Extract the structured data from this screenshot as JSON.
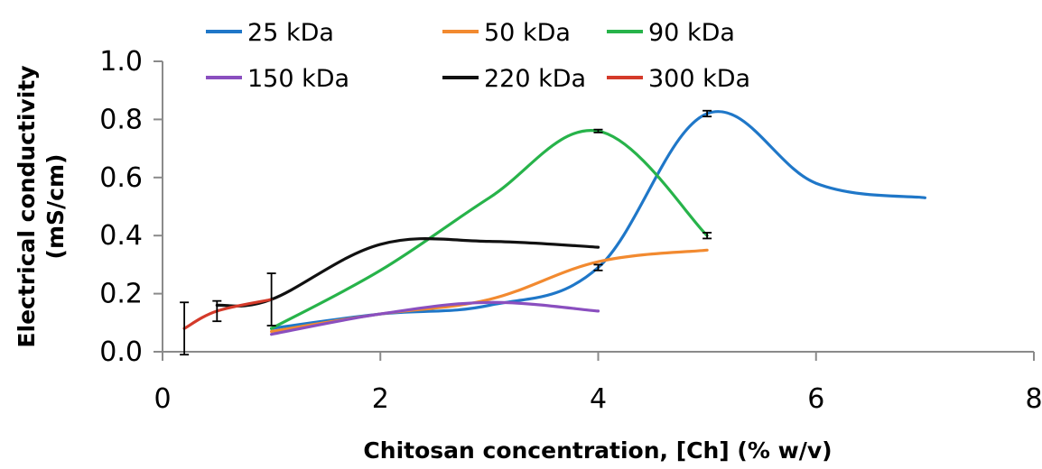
{
  "chart_data": {
    "type": "line",
    "xlabel": "Chitosan concentration, [Ch] (% w/v)",
    "ylabel_lines": [
      "Electrical conductivity",
      "(mS/cm)"
    ],
    "xlim": [
      0,
      8
    ],
    "ylim": [
      0,
      1.0
    ],
    "x_ticks": [
      "0",
      "2",
      "4",
      "6",
      "8"
    ],
    "y_ticks": [
      "0.0",
      "0.2",
      "0.4",
      "0.6",
      "0.8",
      "1.0"
    ],
    "grid": false,
    "legend_position": "top",
    "series": [
      {
        "name": "25 kDa",
        "color": "#1f77c8",
        "x": [
          1,
          2,
          3,
          4,
          5,
          6,
          7
        ],
        "y": [
          0.08,
          0.13,
          0.16,
          0.29,
          0.82,
          0.58,
          0.53
        ],
        "error": [
          0,
          0,
          0,
          0.01,
          0.01,
          0,
          0
        ]
      },
      {
        "name": "50 kDa",
        "color": "#f28a30",
        "x": [
          1,
          2,
          3,
          4,
          5
        ],
        "y": [
          0.07,
          0.13,
          0.18,
          0.31,
          0.35
        ],
        "error": [
          0,
          0,
          0,
          0,
          0
        ]
      },
      {
        "name": "90 kDa",
        "color": "#27b34a",
        "x": [
          1,
          2,
          3,
          4,
          5
        ],
        "y": [
          0.08,
          0.28,
          0.53,
          0.76,
          0.4
        ],
        "error": [
          0,
          0,
          0,
          0.005,
          0.01
        ]
      },
      {
        "name": "150 kDa",
        "color": "#8a4fbf",
        "x": [
          1,
          2,
          3,
          4
        ],
        "y": [
          0.06,
          0.13,
          0.17,
          0.14
        ],
        "error": [
          0,
          0,
          0,
          0
        ]
      },
      {
        "name": "220 kDa",
        "color": "#111111",
        "x": [
          0.5,
          1,
          2,
          3,
          4
        ],
        "y": [
          0.16,
          0.18,
          0.37,
          0.38,
          0.36
        ],
        "error": [
          0,
          0,
          0,
          0,
          0
        ]
      },
      {
        "name": "300 kDa",
        "color": "#d43a2a",
        "x": [
          0.2,
          0.5,
          1
        ],
        "y": [
          0.08,
          0.14,
          0.18
        ],
        "error": [
          0.09,
          0.035,
          0.09
        ]
      }
    ]
  }
}
